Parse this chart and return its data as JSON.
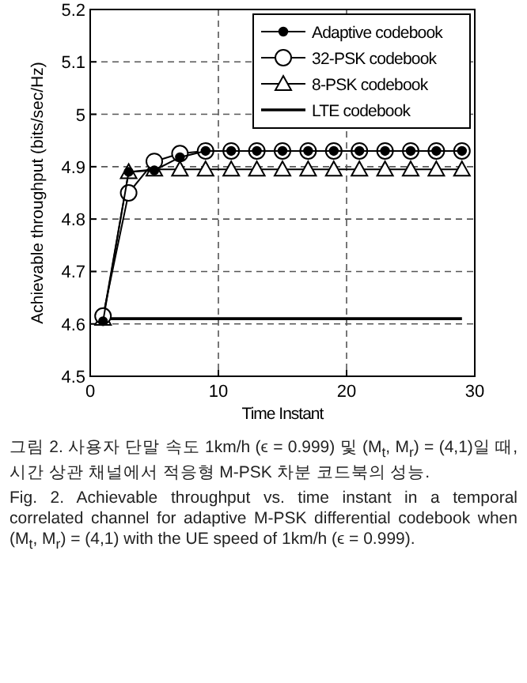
{
  "chart_data": {
    "type": "line",
    "xlabel": "Time Instant",
    "ylabel": "Achievable throughput (bits/sec/Hz)",
    "xlim": [
      0,
      30
    ],
    "ylim": [
      4.5,
      5.2
    ],
    "xticks": [
      0,
      10,
      20,
      30
    ],
    "yticks": [
      4.5,
      4.6,
      4.7,
      4.8,
      4.9,
      5,
      5.1,
      5.2
    ],
    "grid": true,
    "legend": "top right",
    "x": [
      1,
      3,
      5,
      7,
      9,
      11,
      13,
      15,
      17,
      19,
      21,
      23,
      25,
      27,
      29
    ],
    "series": [
      {
        "name": "Adaptive codebook",
        "color": "#000000",
        "marker": "circle",
        "values": [
          4.605,
          4.89,
          4.893,
          4.918,
          4.93,
          4.93,
          4.93,
          4.93,
          4.93,
          4.93,
          4.93,
          4.93,
          4.93,
          4.93,
          4.93
        ]
      },
      {
        "name": "32-PSK codebook",
        "color": "#000000",
        "marker": "circle",
        "values": [
          4.615,
          4.85,
          4.91,
          4.925,
          4.93,
          4.93,
          4.93,
          4.93,
          4.93,
          4.93,
          4.93,
          4.93,
          4.93,
          4.93,
          4.93
        ]
      },
      {
        "name": "8-PSK codebook",
        "color": "#000000",
        "marker": "triangle",
        "values": [
          4.61,
          4.89,
          4.895,
          4.895,
          4.895,
          4.895,
          4.895,
          4.895,
          4.895,
          4.895,
          4.895,
          4.895,
          4.895,
          4.895,
          4.895
        ]
      },
      {
        "name": "LTE codebook",
        "color": "#000000",
        "marker": "none",
        "values": [
          4.61,
          4.61,
          4.61,
          4.61,
          4.61,
          4.61,
          4.61,
          4.61,
          4.61,
          4.61,
          4.61,
          4.61,
          4.61,
          4.61,
          4.61
        ]
      }
    ],
    "annotations": [
      "그림 2. 사용자 단말 속도 1km/h (ϵ = 0.999) 및 (M$_{t}$, M$_{r}$) = (4,1)일 때, 시간 상관 채널에서 적응형 M-PSK 차분 코드북의 성능.",
      "Fig. 2. Achievable throughput vs. time instant in a temporal correlated channel for adaptive M-PSK differential codebook when (M$_{t}$, M$_{r}$) = (4,1) with the UE speed of 1km/h (ϵ = 0.999)."
    ]
  }
}
